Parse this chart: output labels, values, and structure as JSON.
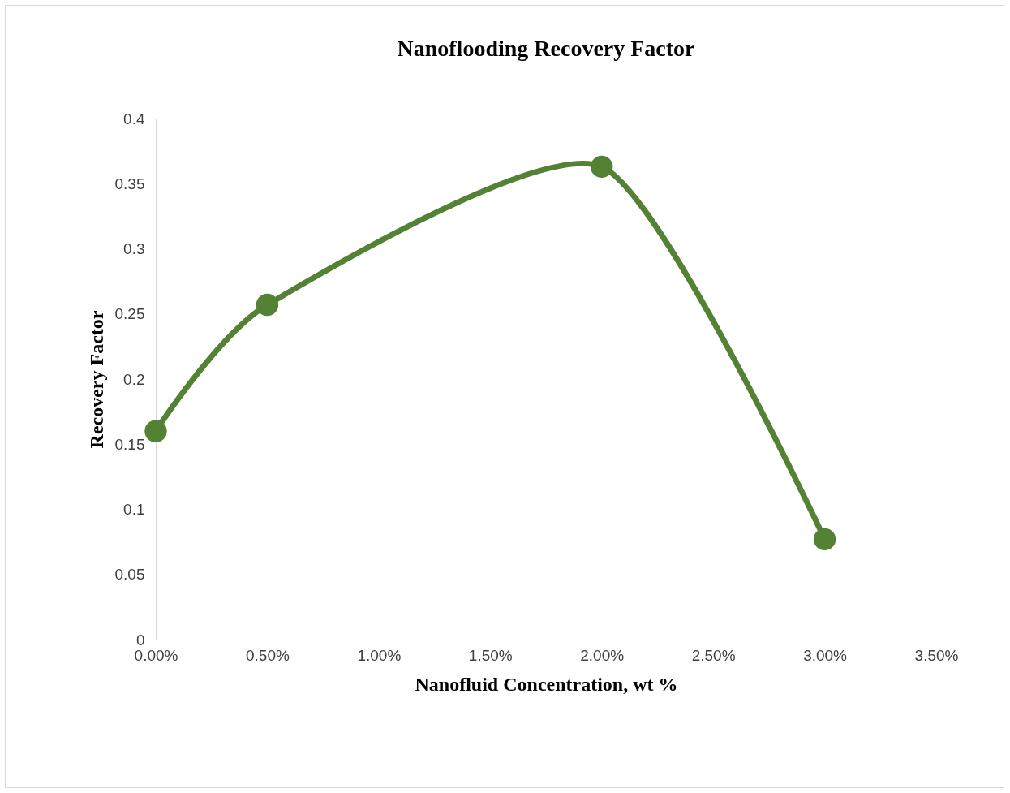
{
  "chart_data": {
    "type": "line",
    "title": "Nanoflooding Recovery Factor",
    "xlabel": "Nanofluid Concentration, wt %",
    "ylabel": "Recovery Factor",
    "x": [
      0,
      0.5,
      2,
      3
    ],
    "series": [
      {
        "color": "#548235",
        "values": [
          0.16,
          0.257,
          0.363,
          0.077
        ]
      }
    ],
    "xlim": [
      0,
      3.5
    ],
    "xticks": [
      {
        "value": 0,
        "label": "0.00%"
      },
      {
        "value": 0.5,
        "label": "0.50%"
      },
      {
        "value": 1,
        "label": "1.00%"
      },
      {
        "value": 1.5,
        "label": "1.50%"
      },
      {
        "value": 2,
        "label": "2.00%"
      },
      {
        "value": 2.5,
        "label": "2.50%"
      },
      {
        "value": 3,
        "label": "3.00%"
      },
      {
        "value": 3.5,
        "label": "3.50%"
      }
    ],
    "ylim": [
      0,
      0.4
    ],
    "yticks": [
      0,
      0.05,
      0.1,
      0.15,
      0.2,
      0.25,
      0.3,
      0.35,
      0.4
    ],
    "grid": false,
    "marker": "circle",
    "line_style": "solid"
  }
}
